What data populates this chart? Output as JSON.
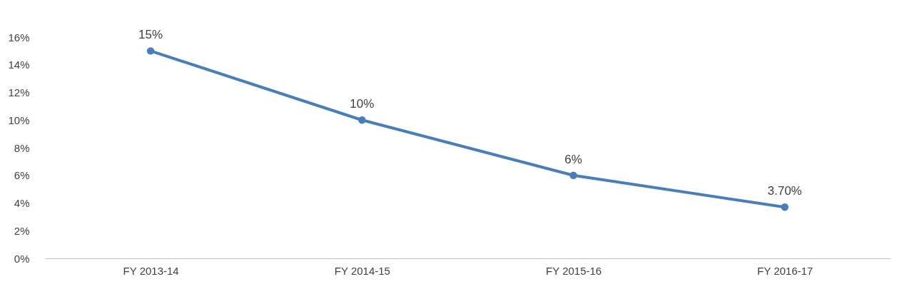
{
  "chart_data": {
    "type": "line",
    "categories": [
      "FY 2013-14",
      "FY 2014-15",
      "FY 2015-16",
      "FY 2016-17"
    ],
    "series": [
      {
        "color": "#4a7ebb",
        "values": [
          15,
          10,
          6,
          3.7
        ]
      }
    ],
    "value_labels": [
      "15%",
      "10%",
      "6%",
      "3.70%"
    ],
    "ylim": [
      0,
      16
    ],
    "yticks": [
      {
        "value": 0,
        "label": "0%"
      },
      {
        "value": 2,
        "label": "2%"
      },
      {
        "value": 4,
        "label": "4%"
      },
      {
        "value": 6,
        "label": "6%"
      },
      {
        "value": 8,
        "label": "8%"
      },
      {
        "value": 10,
        "label": "10%"
      },
      {
        "value": 12,
        "label": "12%"
      },
      {
        "value": 14,
        "label": "14%"
      },
      {
        "value": 16,
        "label": "16%"
      }
    ],
    "marker": "circle",
    "line_style": "solid",
    "grid": false
  }
}
